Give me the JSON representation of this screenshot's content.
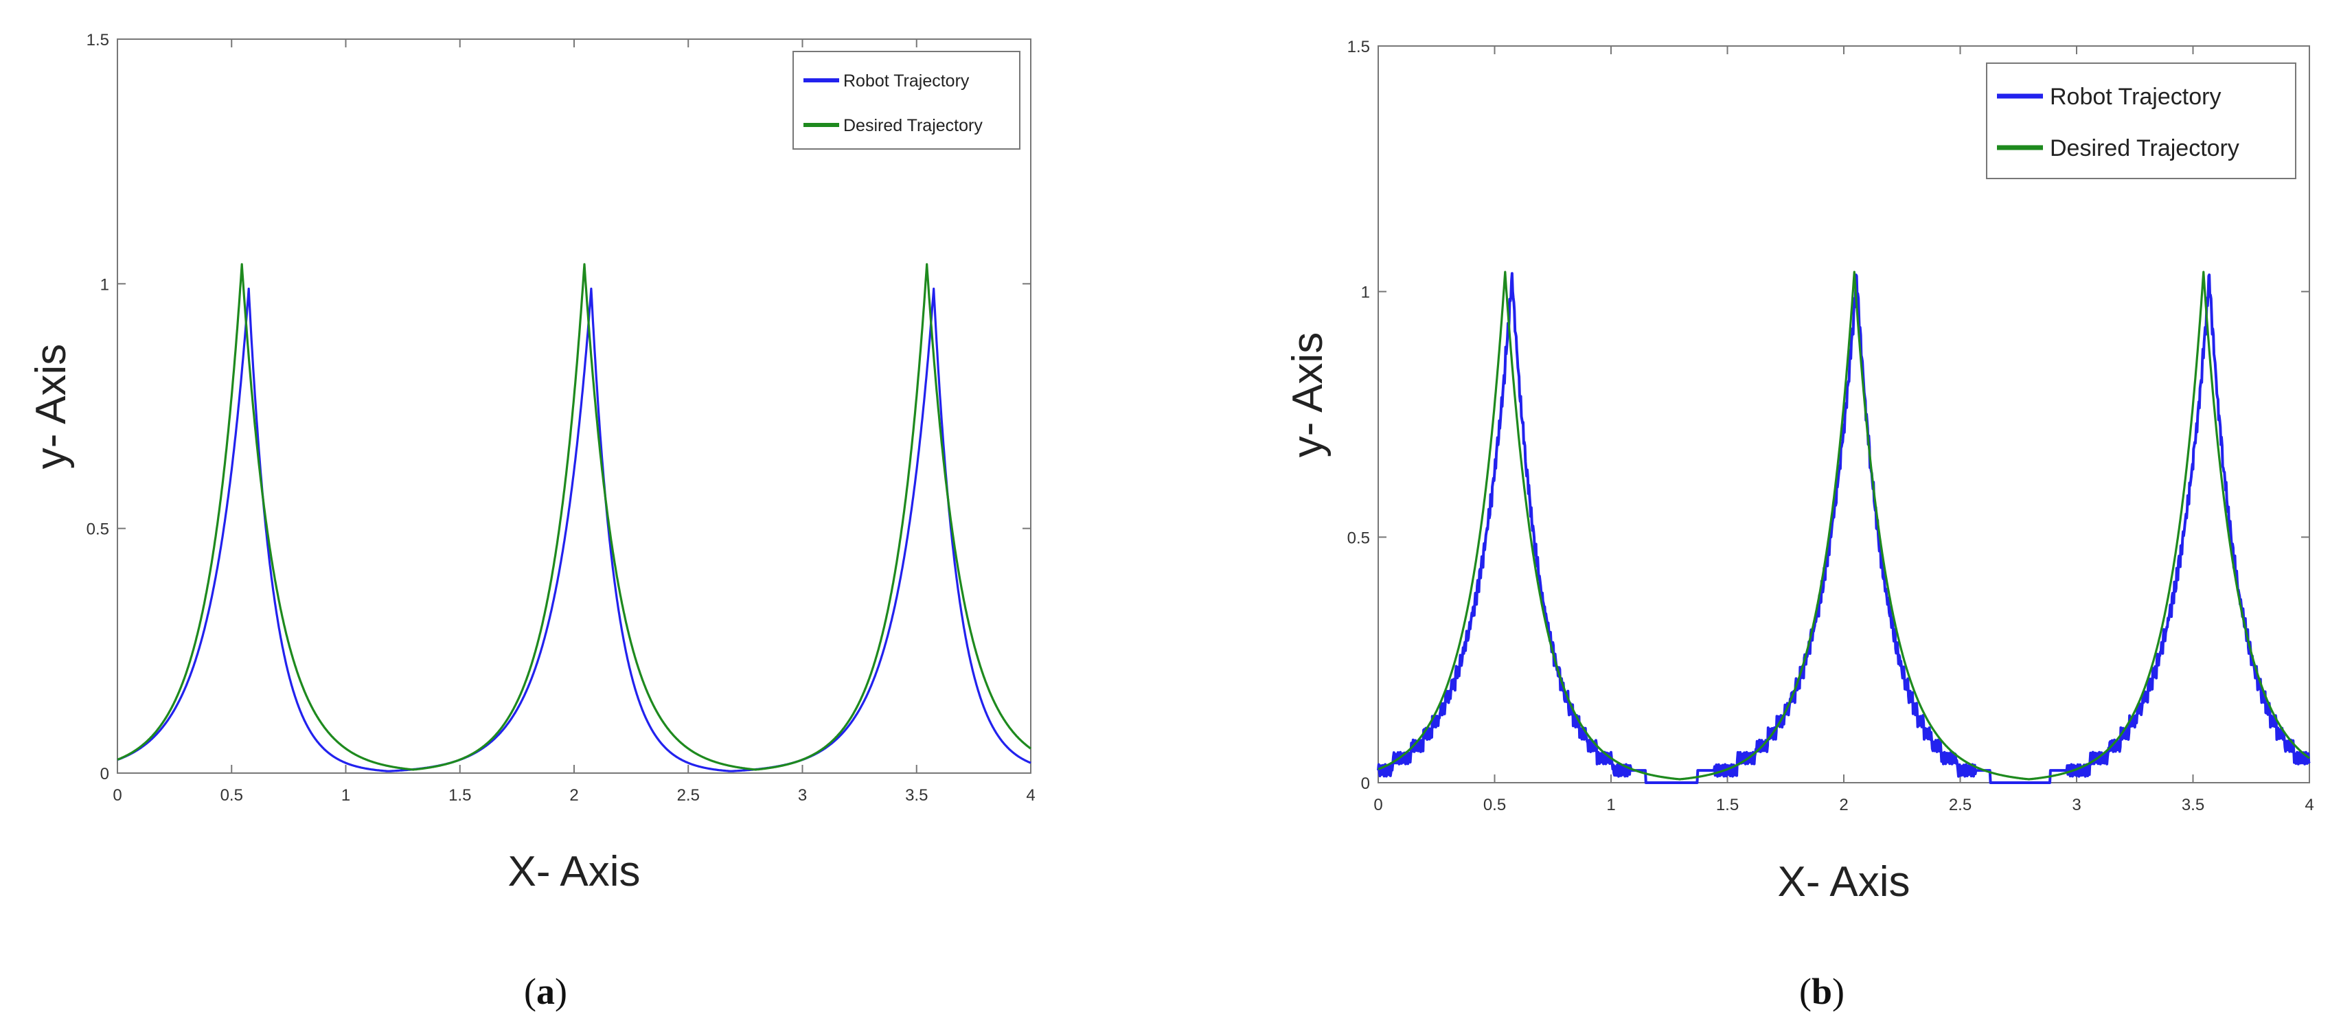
{
  "figure": {
    "panels": [
      {
        "id": "a",
        "caption": "a",
        "xlabel": "X- Axis",
        "ylabel": "y- Axis",
        "xticks": [
          "0",
          "0.5",
          "1",
          "1.5",
          "2",
          "2.5",
          "3",
          "3.5",
          "4"
        ],
        "yticks": [
          "0",
          "0.5",
          "1",
          "1.5"
        ],
        "legend": [
          "Robot Trajectory",
          "Desired Trajectory"
        ]
      },
      {
        "id": "b",
        "caption": "b",
        "xlabel": "X- Axis",
        "ylabel": "y- Axis",
        "xticks": [
          "0",
          "0.5",
          "1",
          "1.5",
          "2",
          "2.5",
          "3",
          "3.5",
          "4"
        ],
        "yticks": [
          "0",
          "0.5",
          "1",
          "1.5"
        ],
        "legend": [
          "Robot Trajectory",
          "Desired Trajectory"
        ]
      }
    ]
  },
  "chart_data": [
    {
      "type": "line",
      "panel": "a",
      "title": "",
      "xlabel": "X- Axis",
      "ylabel": "y- Axis",
      "xlim": [
        0,
        4
      ],
      "ylim": [
        0,
        1.5
      ],
      "grid": false,
      "legend_position": "top-right",
      "series": [
        {
          "name": "Robot Trajectory",
          "color": "#2222ee",
          "peaks": [
            0.575,
            2.075,
            3.575
          ],
          "peak_height": 0.99,
          "rise_width": 0.16,
          "fall_width": 0.11
        },
        {
          "name": "Desired Trajectory",
          "color": "#1e8a1e",
          "peaks": [
            0.545,
            2.045,
            3.545
          ],
          "peak_height": 1.04,
          "rise_width": 0.15,
          "fall_width": 0.15
        }
      ]
    },
    {
      "type": "line",
      "panel": "b",
      "title": "",
      "xlabel": "X- Axis",
      "ylabel": "y- Axis",
      "xlim": [
        0,
        4
      ],
      "ylim": [
        0,
        1.5
      ],
      "grid": false,
      "legend_position": "top-right",
      "series": [
        {
          "name": "Robot Trajectory",
          "color": "#2222ee",
          "peaks": [
            0.575,
            2.055,
            3.57
          ],
          "peak_height": 1.03,
          "rise_width": 0.155,
          "fall_width": 0.13,
          "noisy": true
        },
        {
          "name": "Desired Trajectory",
          "color": "#1e8a1e",
          "peaks": [
            0.545,
            2.045,
            3.545
          ],
          "peak_height": 1.04,
          "rise_width": 0.15,
          "fall_width": 0.15
        }
      ]
    }
  ]
}
